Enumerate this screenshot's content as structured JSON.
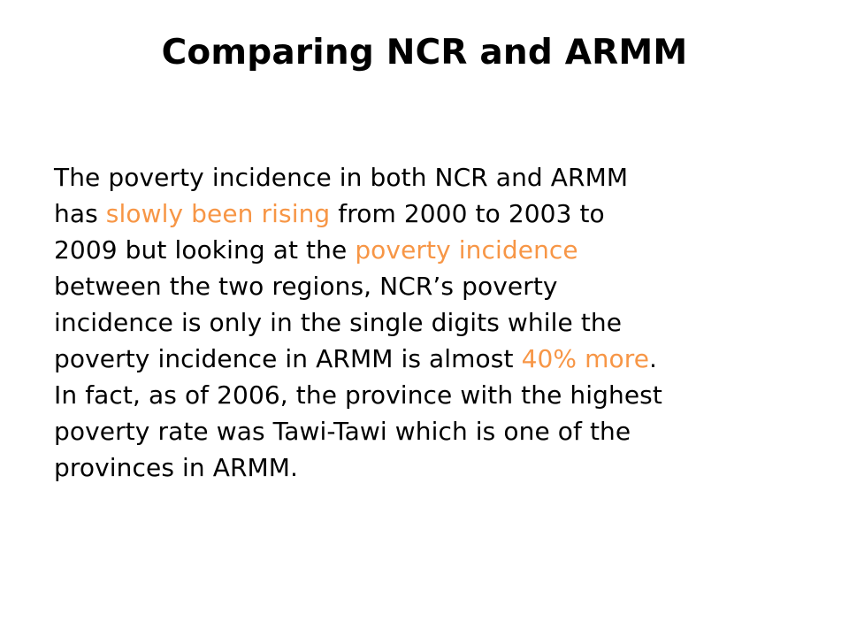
{
  "slide": {
    "title": "Comparing NCR and ARMM",
    "accent_color": "#f79646",
    "body": {
      "l1": "The poverty incidence in both NCR and ARMM",
      "l2_a": "has ",
      "l2_hl": "slowly been rising",
      "l2_b": " from 2000 to 2003 to",
      "l3_a": "2009 but looking at the ",
      "l3_hl": "poverty incidence",
      "l4": "between the two regions, NCR’s poverty",
      "l5": "incidence is only in the single digits while the",
      "l6_a": "poverty incidence in ARMM is almost ",
      "l6_hl": "40% more",
      "l6_b": ".",
      "l7": "In fact, as of 2006, the province with the highest",
      "l8": "poverty rate was Tawi-Tawi which is one of the",
      "l9": "provinces in ARMM."
    }
  }
}
